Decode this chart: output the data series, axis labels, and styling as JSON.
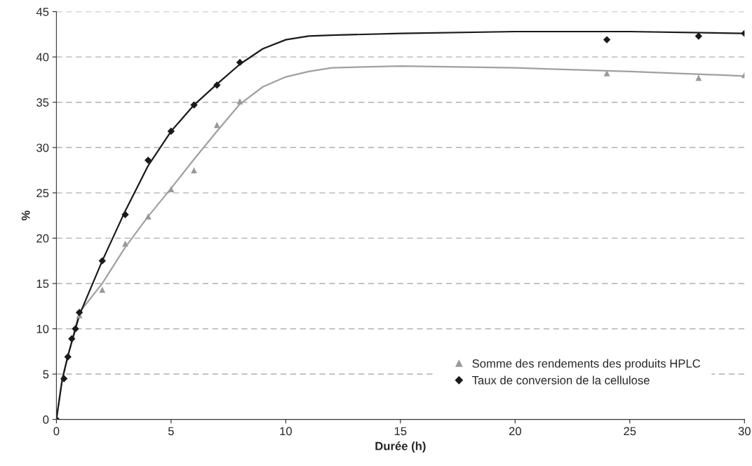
{
  "chart_data": {
    "type": "scatter",
    "xlabel": "Durée (h)",
    "ylabel": "%",
    "xlim": [
      0,
      30
    ],
    "xticks": [
      0,
      5,
      10,
      15,
      20,
      25,
      30
    ],
    "ylim": [
      0,
      45
    ],
    "yticks": [
      0,
      5,
      10,
      15,
      20,
      25,
      30,
      35,
      40,
      45
    ],
    "grid": "y",
    "legend": "bottom right",
    "series": [
      {
        "type": "line",
        "color": "#a0a0a0",
        "marker": "none",
        "x": [
          0,
          0.25,
          0.5,
          1,
          2,
          3,
          4,
          5,
          6,
          7,
          8,
          9,
          10,
          11,
          12,
          15,
          20,
          25,
          30
        ],
        "values": [
          0,
          4.5,
          7,
          11.8,
          15,
          19,
          22.4,
          25.5,
          28.7,
          31.8,
          34.8,
          36.7,
          37.8,
          38.4,
          38.8,
          39.0,
          38.8,
          38.4,
          37.9
        ]
      },
      {
        "type": "line",
        "color": "#1a1a1a",
        "marker": "none",
        "x": [
          0,
          0.25,
          0.5,
          1,
          2,
          3,
          4,
          5,
          6,
          7,
          8,
          9,
          10,
          11,
          12,
          15,
          20,
          25,
          30
        ],
        "values": [
          0,
          4.3,
          7,
          11.5,
          17.5,
          23,
          28,
          31.8,
          34.7,
          37,
          39.2,
          40.9,
          41.9,
          42.3,
          42.4,
          42.6,
          42.8,
          42.8,
          42.6
        ]
      },
      {
        "name": "Somme des rendements des produits HPLC",
        "color": "#999999",
        "marker": "triangle",
        "x": [
          0,
          0.5,
          0.67,
          0.83,
          1,
          2,
          3,
          4,
          5,
          6,
          7,
          8,
          24,
          28,
          30
        ],
        "values": [
          0,
          null,
          null,
          null,
          11.5,
          14.3,
          19.4,
          22.4,
          25.4,
          27.5,
          32.5,
          35.1,
          38.2,
          37.7,
          38.0
        ]
      },
      {
        "name": "Taux de conversion de la cellulose",
        "color": "#1a1a1a",
        "marker": "diamond",
        "x": [
          0,
          0.33,
          0.5,
          0.67,
          0.83,
          1,
          2,
          3,
          4,
          5,
          6,
          7,
          8,
          24,
          28,
          30
        ],
        "values": [
          0,
          4.5,
          6.9,
          8.9,
          10.0,
          11.8,
          17.5,
          22.6,
          28.6,
          31.8,
          34.7,
          36.9,
          39.4,
          41.9,
          42.3,
          42.6
        ]
      }
    ]
  }
}
